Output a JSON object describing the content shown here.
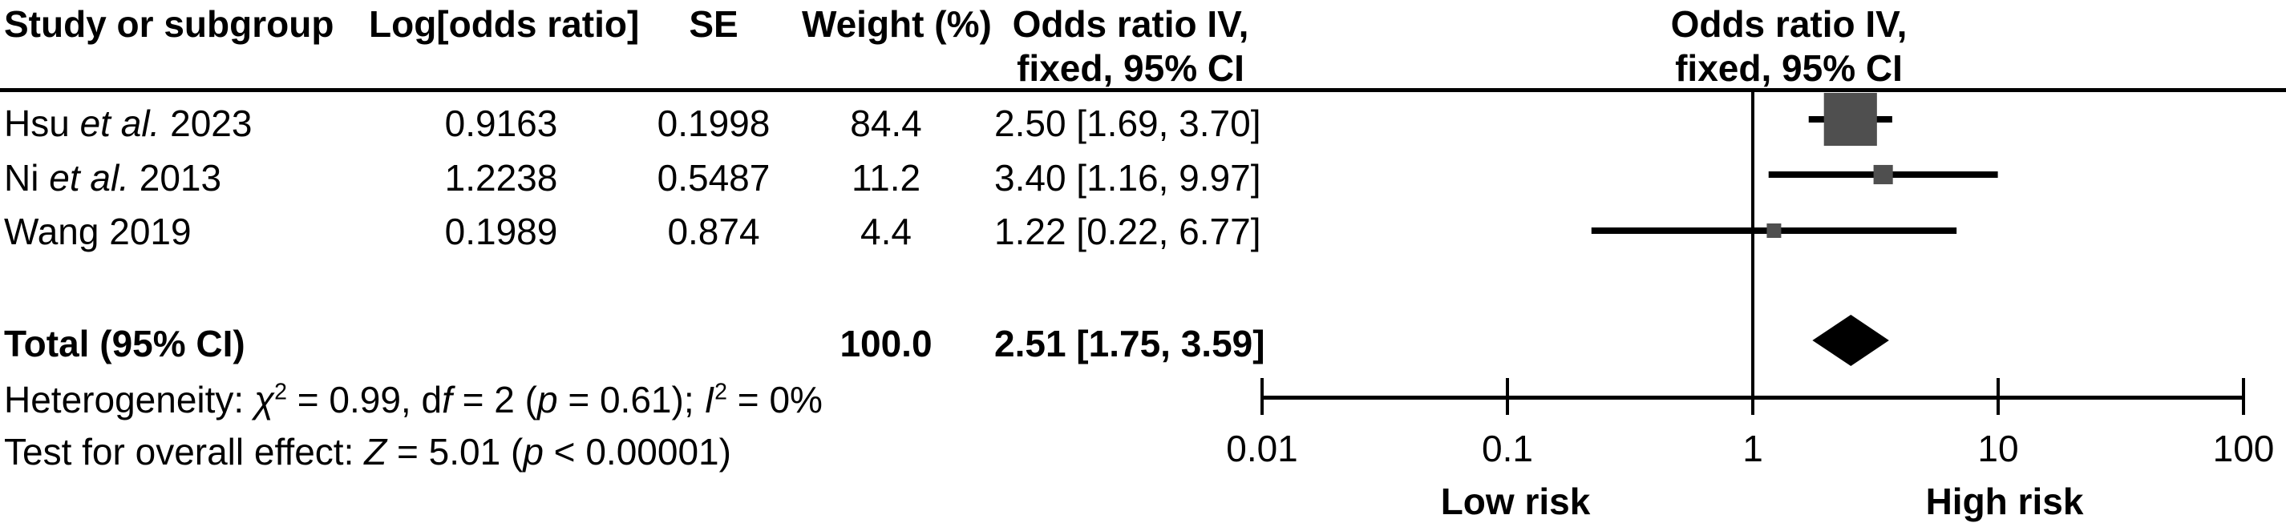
{
  "headers": {
    "study": "Study or subgroup",
    "log_odds_ratio": "Log[odds ratio]",
    "se": "SE",
    "weight": "Weight (%)",
    "or_ci_line1": "Odds ratio IV,",
    "or_ci_line2": "fixed, 95% CI",
    "or_ci_plot_line1": "Odds ratio IV,",
    "or_ci_plot_line2": "fixed, 95% CI"
  },
  "chart_data": {
    "type": "forest",
    "x_axis": {
      "scale": "log10",
      "range": [
        0.01,
        100
      ],
      "tick_values": [
        0.01,
        0.1,
        1,
        10,
        100
      ],
      "tick_labels": [
        "0.01",
        "0.1",
        "1",
        "10",
        "100"
      ],
      "label_low": "Low risk",
      "label_high": "High risk"
    },
    "studies": [
      {
        "name_segs": [
          {
            "t": "Hsu "
          },
          {
            "t": "et al.",
            "c": "i"
          },
          {
            "t": " 2023"
          }
        ],
        "log_odds_ratio": "0.9163",
        "se": "0.1998",
        "weight_pct": "84.4",
        "or": 2.5,
        "ci_low": 1.69,
        "ci_high": 3.7,
        "ci_text": "2.50 [1.69, 3.70]"
      },
      {
        "name_segs": [
          {
            "t": "Ni "
          },
          {
            "t": "et al.",
            "c": "i"
          },
          {
            "t": " 2013"
          }
        ],
        "log_odds_ratio": "1.2238",
        "se": "0.5487",
        "weight_pct": "11.2",
        "or": 3.4,
        "ci_low": 1.16,
        "ci_high": 9.97,
        "ci_text": "3.40 [1.16, 9.97]"
      },
      {
        "name_segs": [
          {
            "t": "Wang"
          },
          {
            "t": "",
            "c": "i"
          },
          {
            "t": " 2019"
          }
        ],
        "log_odds_ratio": "0.1989",
        "se": "0.874",
        "weight_pct": "4.4",
        "or": 1.22,
        "ci_low": 0.22,
        "ci_high": 6.77,
        "ci_text": "1.22 [0.22, 6.77]"
      }
    ],
    "total": {
      "label": "Total (95% CI)",
      "weight_pct": "100.0",
      "or": 2.51,
      "ci_low": 1.75,
      "ci_high": 3.59,
      "ci_text": "2.51 [1.75, 3.59]"
    },
    "heterogeneity_segs": [
      {
        "t": "Heterogeneity: "
      },
      {
        "t": "χ",
        "c": "i"
      },
      {
        "t": "2",
        "c": "sup"
      },
      {
        "t": " = 0.99, d"
      },
      {
        "t": "f",
        "c": "i"
      },
      {
        "t": " = 2 ("
      },
      {
        "t": "p",
        "c": "i"
      },
      {
        "t": " = 0.61); "
      },
      {
        "t": "I",
        "c": "i"
      },
      {
        "t": "2",
        "c": "sup"
      },
      {
        "t": " = 0%"
      }
    ],
    "overall_effect_segs": [
      {
        "t": "Test for overall effect: "
      },
      {
        "t": "Z",
        "c": "i"
      },
      {
        "t": " = 5.01 ("
      },
      {
        "t": "p",
        "c": "i"
      },
      {
        "t": " < 0.00001)"
      }
    ]
  },
  "colors": {
    "marker_fill": "#4f4f4f",
    "diamond_fill": "#000000",
    "line": "#000000"
  }
}
